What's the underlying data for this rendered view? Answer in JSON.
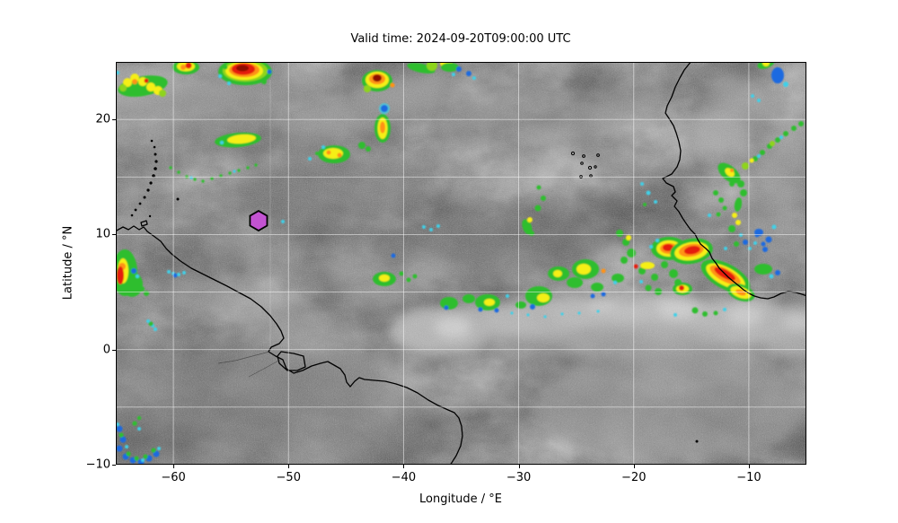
{
  "figure": {
    "title": "Valid time: 2024-09-20T09:00:00 UTC",
    "x_axis": {
      "label": "Longitude / °E",
      "range": [
        -65,
        -5
      ],
      "ticks": [
        {
          "value": -60,
          "label": "−60"
        },
        {
          "value": -50,
          "label": "−50"
        },
        {
          "value": -40,
          "label": "−40"
        },
        {
          "value": -30,
          "label": "−30"
        },
        {
          "value": -20,
          "label": "−20"
        },
        {
          "value": -10,
          "label": "−10"
        }
      ],
      "grid_values": [
        -60,
        -50,
        -40,
        -30,
        -20,
        -10
      ]
    },
    "y_axis": {
      "label": "Latitude / °N",
      "range": [
        -10,
        25
      ],
      "ticks": [
        {
          "value": 20,
          "label": "20"
        },
        {
          "value": 10,
          "label": "10"
        },
        {
          "value": 0,
          "label": "0"
        },
        {
          "value": -10,
          "label": "−10"
        }
      ],
      "grid_values": [
        20,
        15,
        10,
        5,
        0,
        -5
      ]
    },
    "marker": {
      "shape": "hexagon",
      "lon": -52.6,
      "lat": 11.2,
      "fill_color": "#c353d2",
      "edge_color": "#000000"
    },
    "grid_color": "#ffffff",
    "imagery_palette": {
      "cloud_gray": "#757575",
      "light_cloud": "#b5b5b5",
      "rain_blue": "#1d6ae0",
      "rain_cyan": "#3fd0e8",
      "rain_green": "#2fbe2f",
      "rain_yellow": "#f5ef12",
      "rain_orange": "#ff9212",
      "rain_red": "#e51c0c",
      "rain_dark_red": "#8e0b00"
    }
  }
}
